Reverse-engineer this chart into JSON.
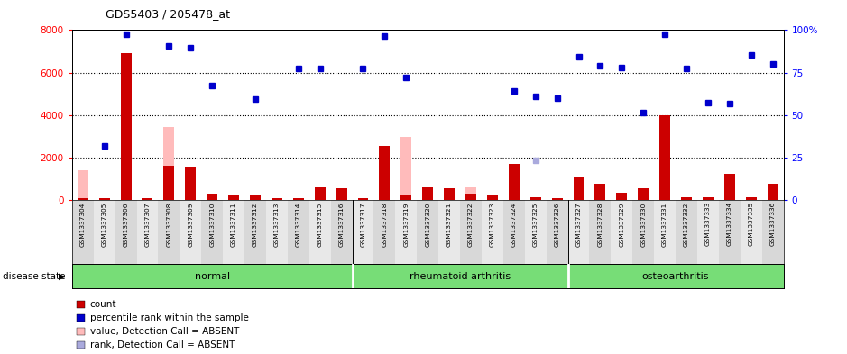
{
  "title": "GDS5403 / 205478_at",
  "samples": [
    "GSM1337304",
    "GSM1337305",
    "GSM1337306",
    "GSM1337307",
    "GSM1337308",
    "GSM1337309",
    "GSM1337310",
    "GSM1337311",
    "GSM1337312",
    "GSM1337313",
    "GSM1337314",
    "GSM1337315",
    "GSM1337316",
    "GSM1337317",
    "GSM1337318",
    "GSM1337319",
    "GSM1337320",
    "GSM1337321",
    "GSM1337322",
    "GSM1337323",
    "GSM1337324",
    "GSM1337325",
    "GSM1337326",
    "GSM1337327",
    "GSM1337328",
    "GSM1337329",
    "GSM1337330",
    "GSM1337331",
    "GSM1337332",
    "GSM1337333",
    "GSM1337334",
    "GSM1337335",
    "GSM1337336"
  ],
  "count_values": [
    70,
    100,
    6900,
    100,
    1600,
    1550,
    300,
    200,
    200,
    100,
    100,
    600,
    550,
    100,
    2550,
    250,
    600,
    550,
    300,
    250,
    1700,
    150,
    100,
    1050,
    750,
    350,
    550,
    4000,
    150,
    150,
    1250,
    150,
    750
  ],
  "percentile_values": [
    null,
    2550,
    7800,
    null,
    7250,
    7150,
    5400,
    null,
    4750,
    null,
    6200,
    6200,
    null,
    6200,
    7700,
    5750,
    null,
    null,
    null,
    null,
    5150,
    4900,
    4800,
    6750,
    6300,
    6250,
    4100,
    7800,
    6200,
    4600,
    4550,
    6850,
    6400
  ],
  "absent_count": [
    1400,
    null,
    null,
    null,
    3450,
    null,
    null,
    null,
    null,
    null,
    null,
    null,
    null,
    null,
    null,
    2950,
    null,
    null,
    600,
    null,
    null,
    null,
    null,
    null,
    null,
    null,
    null,
    null,
    null,
    null,
    null,
    null,
    null
  ],
  "absent_rank": [
    null,
    null,
    null,
    null,
    null,
    null,
    null,
    null,
    null,
    null,
    null,
    null,
    null,
    null,
    null,
    null,
    null,
    null,
    null,
    null,
    null,
    1850,
    null,
    null,
    null,
    null,
    null,
    null,
    null,
    null,
    null,
    null,
    null
  ],
  "groups": [
    {
      "name": "normal",
      "start": 0,
      "end": 13
    },
    {
      "name": "rheumatoid arthritis",
      "start": 13,
      "end": 23
    },
    {
      "name": "osteoarthritis",
      "start": 23,
      "end": 33
    }
  ],
  "ylim_left": [
    0,
    8000
  ],
  "ylim_right": [
    0,
    100
  ],
  "yticks_left": [
    0,
    2000,
    4000,
    6000,
    8000
  ],
  "yticks_right": [
    0,
    25,
    50,
    75,
    100
  ],
  "bar_color": "#cc0000",
  "dot_color": "#0000cc",
  "absent_count_color": "#ffbbbb",
  "absent_rank_color": "#aaaadd",
  "label_bg_color_even": "#d8d8d8",
  "label_bg_color_odd": "#e8e8e8",
  "group_color": "#77dd77",
  "legend_items": [
    {
      "label": "count",
      "color": "#cc0000"
    },
    {
      "label": "percentile rank within the sample",
      "color": "#0000cc"
    },
    {
      "label": "value, Detection Call = ABSENT",
      "color": "#ffbbbb"
    },
    {
      "label": "rank, Detection Call = ABSENT",
      "color": "#aaaadd"
    }
  ]
}
